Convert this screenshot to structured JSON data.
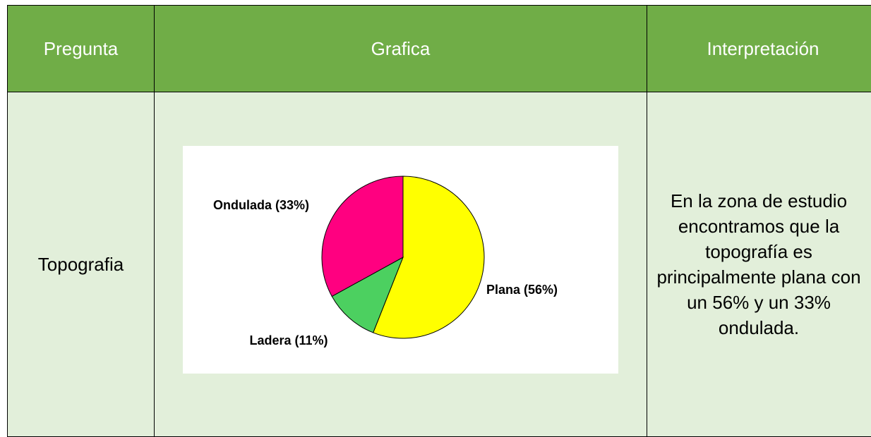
{
  "table": {
    "header": [
      "Pregunta",
      "Grafica",
      "Interpretación"
    ],
    "rows": [
      [
        "Topografia",
        "En la zona de estudio encontramos que la topografía es principalmente plana con un 56% y un 33% ondulada."
      ]
    ]
  },
  "chart_data": {
    "type": "pie",
    "categories": [
      "Plana",
      "Ladera",
      "Ondulada"
    ],
    "values": [
      56,
      11,
      33
    ],
    "value_labels": [
      "Plana (56%)",
      "Ladera (11%)",
      "Ondulada (33%)"
    ],
    "colors": [
      "#ffff00",
      "#4cd060",
      "#ff0080"
    ]
  }
}
